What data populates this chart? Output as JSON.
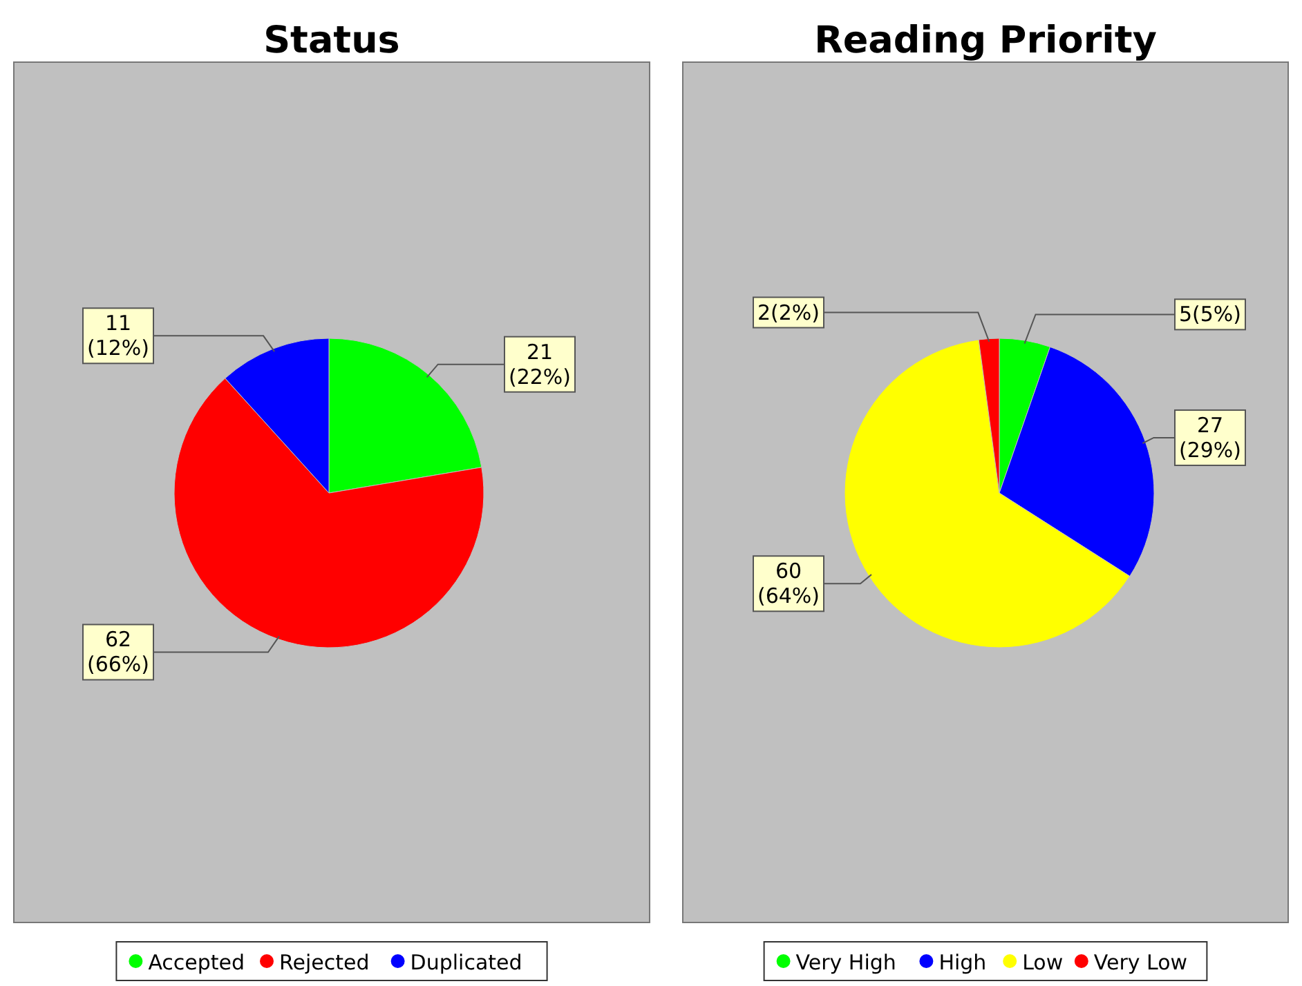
{
  "chart_data": [
    {
      "type": "pie",
      "title": "Status",
      "categories": [
        "Accepted",
        "Rejected",
        "Duplicated"
      ],
      "values": [
        21,
        62,
        11
      ],
      "colors": [
        "#00ff00",
        "#ff0000",
        "#0000ff"
      ],
      "value_labels": [
        "21\n(22%)",
        "62\n(66%)",
        "11\n(12%)"
      ],
      "legend": "bottom"
    },
    {
      "type": "pie",
      "title": "Reading Priority",
      "categories": [
        "Very High",
        "High",
        "Low",
        "Very Low"
      ],
      "values": [
        5,
        27,
        60,
        2
      ],
      "colors": [
        "#00ff00",
        "#0000ff",
        "#ffff00",
        "#ff0000"
      ],
      "value_labels": [
        "5(5%)",
        "27\n(29%)",
        "60\n(64%)",
        "2(2%)"
      ],
      "legend": "bottom"
    }
  ]
}
